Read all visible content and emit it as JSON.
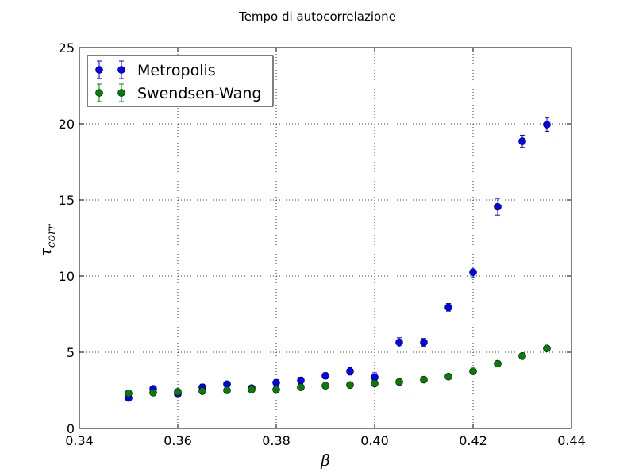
{
  "chart_data": {
    "type": "scatter",
    "title": "Tempo di autocorrelazione",
    "xlabel": "β",
    "ylabel": {
      "base": "τ",
      "subscript": "corr"
    },
    "xlim": [
      0.34,
      0.44
    ],
    "ylim": [
      0,
      25
    ],
    "x_ticks": [
      "0.34",
      "0.36",
      "0.38",
      "0.40",
      "0.42",
      "0.44"
    ],
    "y_ticks": [
      "0",
      "5",
      "10",
      "15",
      "20",
      "25"
    ],
    "grid": true,
    "legend_position": "top-left",
    "series": [
      {
        "name": "Metropolis",
        "color": "#0000ff",
        "marker": "circle",
        "error_bars": true,
        "points": [
          {
            "x": 0.35,
            "y": 2.0,
            "err": 0.1
          },
          {
            "x": 0.355,
            "y": 2.6,
            "err": 0.15
          },
          {
            "x": 0.36,
            "y": 2.25,
            "err": 0.15
          },
          {
            "x": 0.365,
            "y": 2.7,
            "err": 0.2
          },
          {
            "x": 0.37,
            "y": 2.9,
            "err": 0.2
          },
          {
            "x": 0.375,
            "y": 2.65,
            "err": 0.15
          },
          {
            "x": 0.38,
            "y": 3.0,
            "err": 0.2
          },
          {
            "x": 0.385,
            "y": 3.15,
            "err": 0.2
          },
          {
            "x": 0.39,
            "y": 3.45,
            "err": 0.2
          },
          {
            "x": 0.395,
            "y": 3.75,
            "err": 0.25
          },
          {
            "x": 0.4,
            "y": 3.35,
            "err": 0.3
          },
          {
            "x": 0.405,
            "y": 5.65,
            "err": 0.3
          },
          {
            "x": 0.41,
            "y": 5.65,
            "err": 0.25
          },
          {
            "x": 0.415,
            "y": 7.95,
            "err": 0.25
          },
          {
            "x": 0.42,
            "y": 10.25,
            "err": 0.35
          },
          {
            "x": 0.425,
            "y": 14.55,
            "err": 0.55
          },
          {
            "x": 0.43,
            "y": 18.85,
            "err": 0.4
          },
          {
            "x": 0.435,
            "y": 19.95,
            "err": 0.45
          }
        ]
      },
      {
        "name": "Swendsen-Wang",
        "color": "#008000",
        "marker": "circle",
        "error_bars": true,
        "points": [
          {
            "x": 0.35,
            "y": 2.3,
            "err": 0.05
          },
          {
            "x": 0.355,
            "y": 2.35,
            "err": 0.05
          },
          {
            "x": 0.36,
            "y": 2.4,
            "err": 0.05
          },
          {
            "x": 0.365,
            "y": 2.45,
            "err": 0.05
          },
          {
            "x": 0.37,
            "y": 2.5,
            "err": 0.05
          },
          {
            "x": 0.375,
            "y": 2.55,
            "err": 0.05
          },
          {
            "x": 0.38,
            "y": 2.55,
            "err": 0.05
          },
          {
            "x": 0.385,
            "y": 2.7,
            "err": 0.05
          },
          {
            "x": 0.39,
            "y": 2.8,
            "err": 0.05
          },
          {
            "x": 0.395,
            "y": 2.85,
            "err": 0.05
          },
          {
            "x": 0.4,
            "y": 2.95,
            "err": 0.05
          },
          {
            "x": 0.405,
            "y": 3.05,
            "err": 0.05
          },
          {
            "x": 0.41,
            "y": 3.2,
            "err": 0.05
          },
          {
            "x": 0.415,
            "y": 3.4,
            "err": 0.05
          },
          {
            "x": 0.42,
            "y": 3.75,
            "err": 0.05
          },
          {
            "x": 0.425,
            "y": 4.25,
            "err": 0.05
          },
          {
            "x": 0.43,
            "y": 4.75,
            "err": 0.05
          },
          {
            "x": 0.435,
            "y": 5.25,
            "err": 0.05
          }
        ]
      }
    ]
  }
}
